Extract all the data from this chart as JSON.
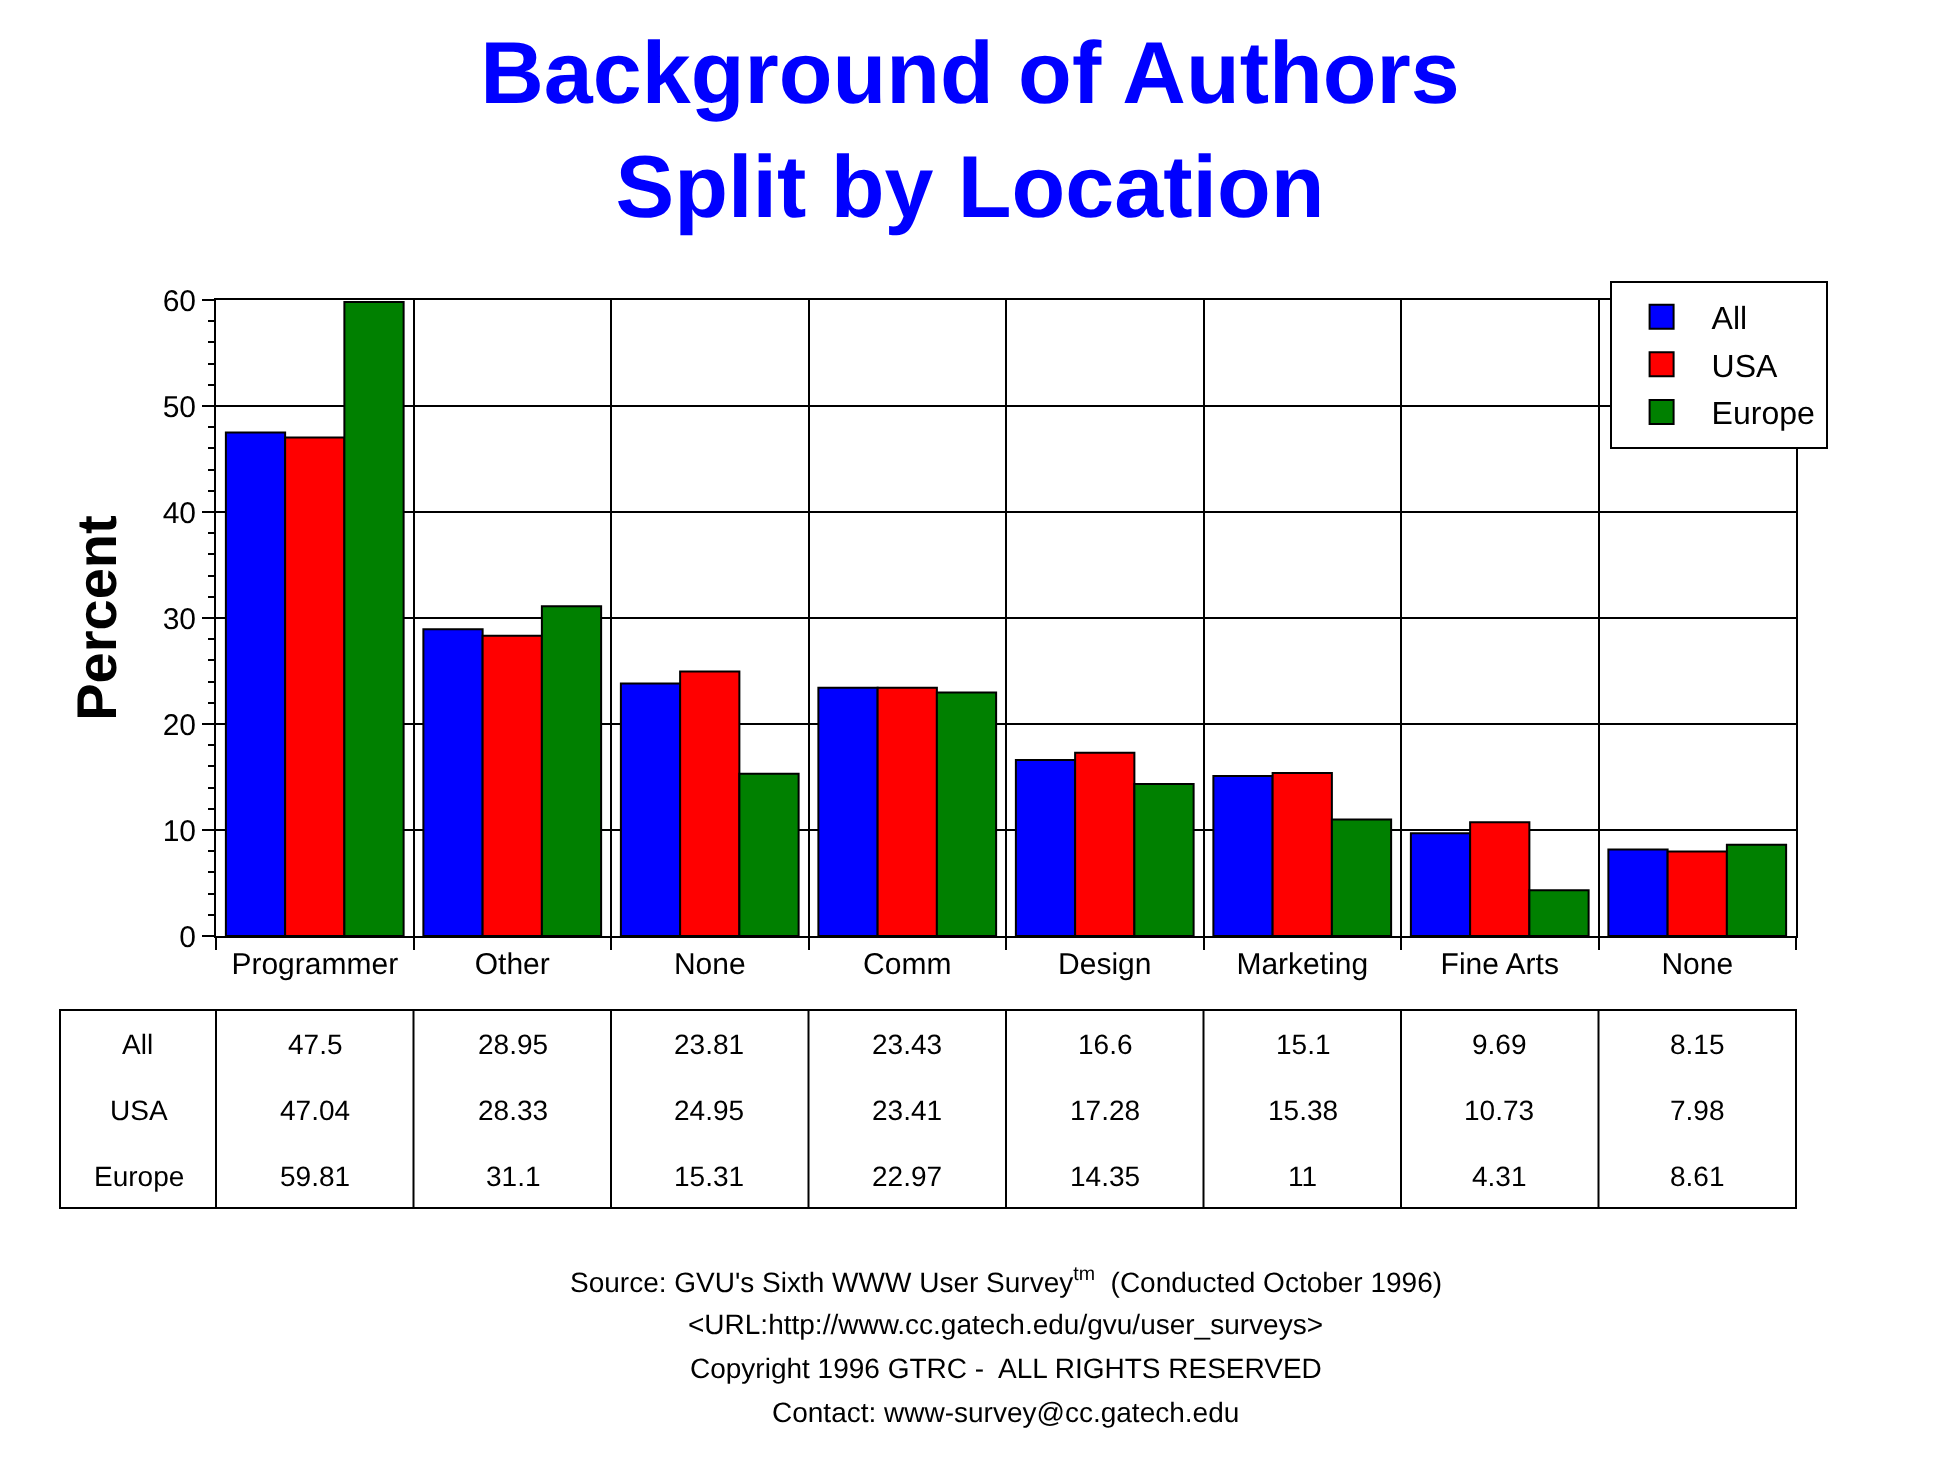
{
  "chart_data": {
    "type": "bar",
    "title": "Background of Authors\nSplit by Location",
    "ylabel": "Percent",
    "categories": [
      "Programmer",
      "Other",
      "None",
      "Comm",
      "Design",
      "Marketing",
      "Fine Arts",
      "None"
    ],
    "series": [
      {
        "name": "All",
        "color": "#0000ff",
        "values": [
          47.5,
          28.95,
          23.81,
          23.43,
          16.6,
          15.1,
          9.69,
          8.15
        ]
      },
      {
        "name": "USA",
        "color": "#ff0000",
        "values": [
          47.04,
          28.33,
          24.95,
          23.41,
          17.28,
          15.38,
          10.73,
          7.98
        ]
      },
      {
        "name": "Europe",
        "color": "#008000",
        "values": [
          59.81,
          31.1,
          15.31,
          22.97,
          14.35,
          11,
          4.31,
          8.61
        ]
      }
    ],
    "ylim": [
      0,
      60
    ],
    "yticks": [
      0,
      10,
      20,
      30,
      40,
      50,
      60
    ],
    "grid": true,
    "legend": "top right",
    "data_labels": true,
    "annotations": [
      "Source: GVU's Sixth WWW User Survey$^{tm}$  (Conducted October 1996)",
      "<URL:http://www.cc.gatech.edu/gvu/user_surveys>",
      "Copyright 1996 GTRC -  ALL RIGHTS RESERVED",
      "Contact: www-survey@cc.gatech.edu"
    ]
  }
}
